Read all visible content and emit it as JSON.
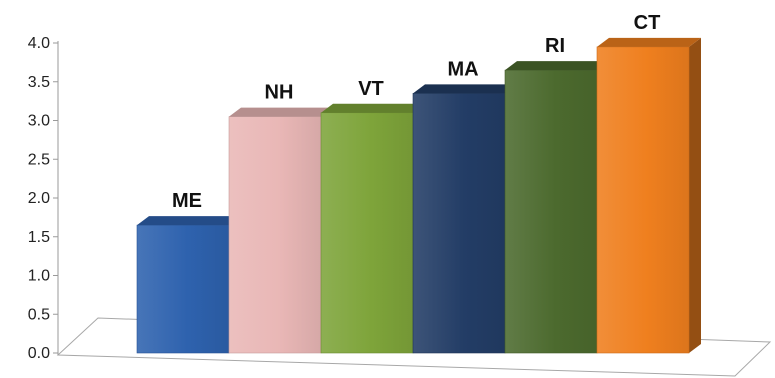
{
  "chart_data": {
    "type": "bar",
    "style": "3d-column",
    "categories": [
      "ME",
      "NH",
      "VT",
      "MA",
      "RI",
      "CT"
    ],
    "values": [
      1.65,
      3.05,
      3.1,
      3.35,
      3.65,
      3.95
    ],
    "y_ticks": [
      "0.0",
      "0.5",
      "1.0",
      "1.5",
      "2.0",
      "2.5",
      "3.0",
      "3.5",
      "4.0"
    ],
    "ylim": [
      0,
      4.0
    ],
    "title": "",
    "xlabel": "",
    "ylabel": "",
    "grid": false,
    "legend": "none",
    "data_labels": "category-above-bar",
    "colors": [
      "#2E62AE",
      "#E9B7B6",
      "#7EA43A",
      "#233D66",
      "#4C6A2E",
      "#EF7F1E"
    ]
  }
}
